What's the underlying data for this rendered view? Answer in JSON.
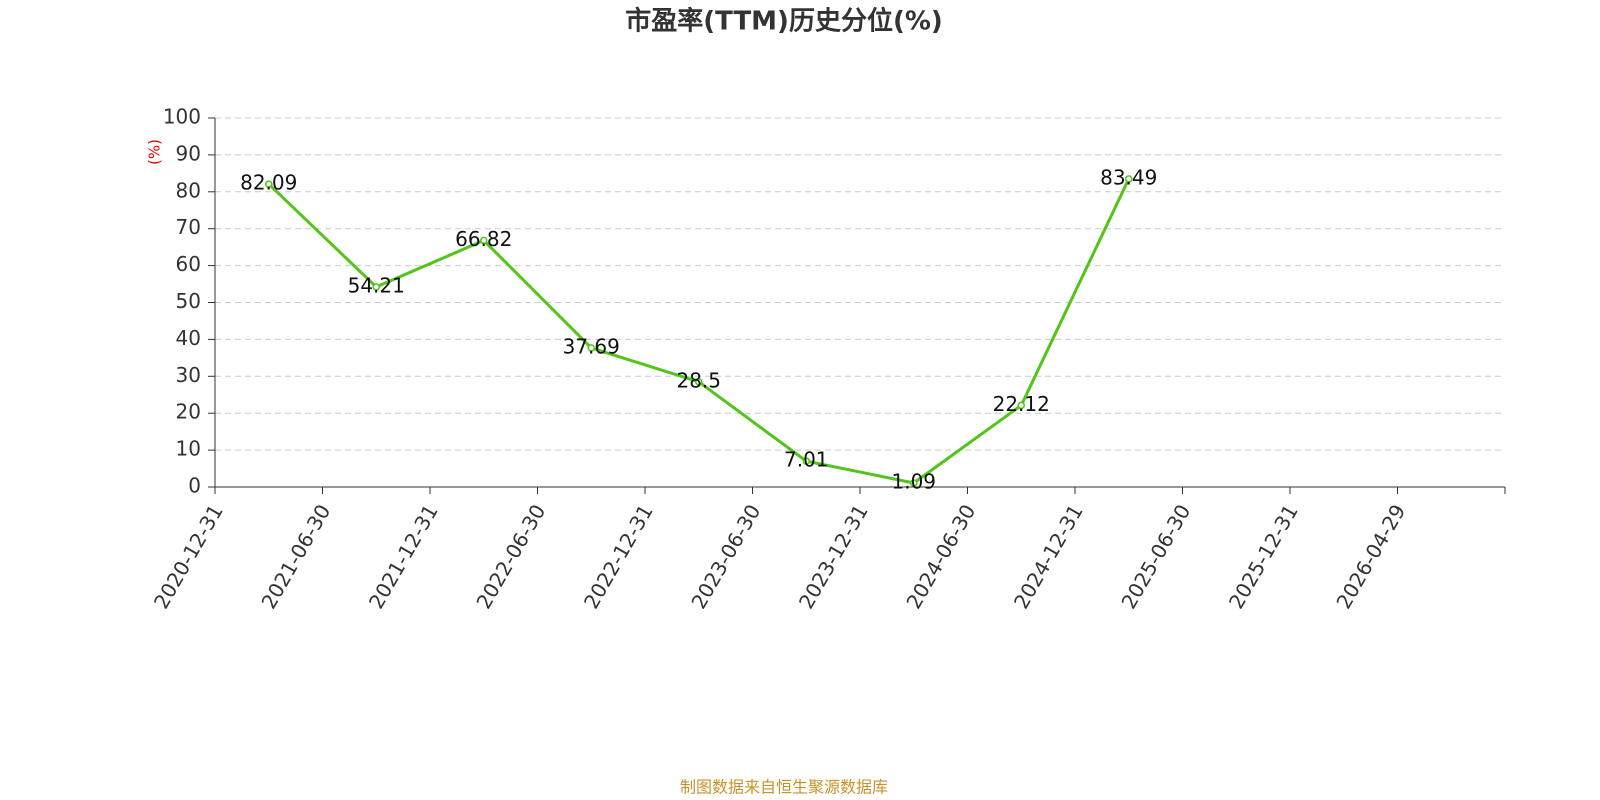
{
  "chart_data": {
    "type": "line",
    "title": "市盈率(TTM)历史分位(%)",
    "ylabel": "(%)",
    "source": "制图数据来自恒生聚源数据库",
    "categories": [
      "2020-12-31",
      "2021-06-30",
      "2021-12-31",
      "2022-06-30",
      "2022-12-31",
      "2023-06-30",
      "2023-12-31",
      "2024-06-30",
      "2024-12-31",
      "2025-06-30",
      "2025-12-31",
      "2026-04-29"
    ],
    "series": [
      {
        "name": "市盈率(TTM)历史分位",
        "color": "#52c41a",
        "values": [
          82.09,
          54.21,
          66.82,
          37.69,
          28.5,
          7.01,
          1.09,
          22.12,
          83.49,
          null,
          null,
          null
        ]
      }
    ],
    "ylim": [
      0,
      100
    ],
    "yticks": [
      0,
      10,
      20,
      30,
      40,
      50,
      60,
      70,
      80,
      90,
      100
    ],
    "grid": true
  }
}
